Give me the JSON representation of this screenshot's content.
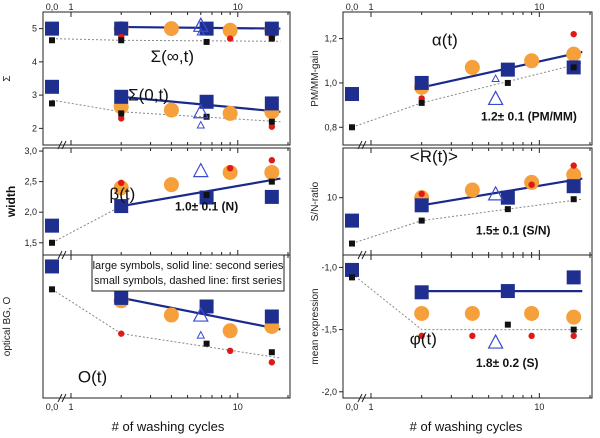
{
  "chart_data": {
    "type": "scatter",
    "x_axis_label": "# of washing cycles",
    "x_log_scale": true,
    "x_tick_labels": [
      "0,0",
      "1",
      "10"
    ],
    "legend_lines": [
      "large symbols, solid line: second series",
      "small symbols, dashed line: first series"
    ],
    "panels": [
      {
        "id": "sigma",
        "ylabel": "Σ",
        "ylim": [
          1.5,
          5.5
        ],
        "yticks": [
          {
            "v": 2,
            "t": "2"
          },
          {
            "v": 3,
            "t": "3"
          },
          {
            "v": 4,
            "t": "4"
          },
          {
            "v": 5,
            "t": "5"
          }
        ],
        "top_ticks": [
          {
            "v": 0,
            "t": "0,0"
          },
          {
            "v": 1,
            "t": "1"
          },
          {
            "v": 10,
            "t": "10"
          }
        ],
        "labels": [
          {
            "text": "Σ(∞,t)",
            "x": 3.0,
            "y": 4.3
          },
          {
            "text": "Σ(0,t)",
            "x": 2.2,
            "y": 2.9
          }
        ],
        "groups": [
          {
            "name": "Σ(∞,t)",
            "squares": [
              [
                0,
                5.0
              ],
              [
                2,
                5.0
              ],
              [
                6.5,
                5.0
              ],
              [
                16,
                5.0
              ]
            ],
            "circles": [
              [
                2,
                5.0
              ],
              [
                4,
                5.0
              ],
              [
                9,
                4.95
              ],
              [
                16,
                4.95
              ]
            ],
            "triangles_large": [
              [
                6,
                5.1
              ]
            ],
            "small_squares": [
              [
                0,
                4.65
              ],
              [
                2,
                4.65
              ],
              [
                6.5,
                4.6
              ],
              [
                16,
                4.7
              ]
            ],
            "small_circles": [
              [
                2,
                4.75
              ],
              [
                9,
                4.7
              ],
              [
                16,
                4.7
              ]
            ],
            "triangles_small": [
              [
                6,
                4.9
              ]
            ],
            "solid_line": [
              [
                2,
                5.05
              ],
              [
                18,
                5.0
              ]
            ],
            "dashed_line": [
              [
                0,
                4.7
              ],
              [
                2,
                4.65
              ],
              [
                18,
                4.62
              ]
            ]
          },
          {
            "name": "Σ(0,t)",
            "squares": [
              [
                0,
                3.25
              ],
              [
                2,
                2.95
              ],
              [
                6.5,
                2.8
              ],
              [
                16,
                2.75
              ]
            ],
            "circles": [
              [
                2,
                2.65
              ],
              [
                4,
                2.55
              ],
              [
                9,
                2.45
              ],
              [
                16,
                2.5
              ]
            ],
            "triangles_large": [
              [
                6,
                2.5
              ]
            ],
            "small_squares": [
              [
                0,
                2.75
              ],
              [
                2,
                2.45
              ],
              [
                6.5,
                2.35
              ],
              [
                16,
                2.2
              ]
            ],
            "small_circles": [
              [
                2,
                2.3
              ],
              [
                16,
                2.05
              ]
            ],
            "triangles_small": [
              [
                6,
                2.1
              ]
            ],
            "solid_line": [
              [
                2,
                2.95
              ],
              [
                18,
                2.5
              ]
            ],
            "dashed_line": [
              [
                0,
                2.85
              ],
              [
                2,
                2.5
              ],
              [
                18,
                2.2
              ]
            ]
          }
        ]
      },
      {
        "id": "alpha",
        "ylabel": "PM/MM-gain",
        "ylim": [
          0.72,
          1.32
        ],
        "yticks": [
          {
            "v": 0.8,
            "t": "0,8"
          },
          {
            "v": 1.0,
            "t": "1,0"
          },
          {
            "v": 1.2,
            "t": "1,2"
          }
        ],
        "top_ticks": [
          {
            "v": 0,
            "t": "0,0"
          },
          {
            "v": 1,
            "t": "1"
          },
          {
            "v": 10,
            "t": "10"
          }
        ],
        "labels": [
          {
            "text": "α(t)",
            "x": 2.3,
            "y": 1.26
          }
        ],
        "annotation": {
          "text": "1.2± 0.1 (PM/MM)",
          "x": 4.5,
          "y": 0.83
        },
        "groups": [
          {
            "name": "α(t)",
            "squares": [
              [
                0,
                0.95
              ],
              [
                2,
                1.0
              ],
              [
                6.5,
                1.06
              ],
              [
                16,
                1.07
              ]
            ],
            "circles": [
              [
                2,
                0.98
              ],
              [
                4,
                1.07
              ],
              [
                9,
                1.1
              ],
              [
                16,
                1.13
              ]
            ],
            "triangles_large": [
              [
                5.5,
                0.93
              ]
            ],
            "small_squares": [
              [
                0,
                0.8
              ],
              [
                2,
                0.91
              ],
              [
                6.5,
                1.0
              ],
              [
                16,
                1.07
              ]
            ],
            "small_circles": [
              [
                2,
                0.93
              ],
              [
                16,
                1.22
              ]
            ],
            "triangles_small": [
              [
                5.5,
                1.02
              ]
            ],
            "solid_line": [
              [
                2,
                0.98
              ],
              [
                18,
                1.14
              ]
            ],
            "dashed_line": [
              [
                0,
                0.8
              ],
              [
                2,
                0.91
              ],
              [
                18,
                1.09
              ]
            ]
          }
        ]
      },
      {
        "id": "beta",
        "ylabel": "width",
        "ylim": [
          1.3,
          3.05
        ],
        "yticks": [
          {
            "v": 1.5,
            "t": "1,5"
          },
          {
            "v": 2.0,
            "t": "2,0"
          },
          {
            "v": 2.5,
            "t": "2,5"
          },
          {
            "v": 3.0,
            "t": "3,0"
          }
        ],
        "labels": [
          {
            "text": "β(t)",
            "x": 1.7,
            "y": 2.44
          }
        ],
        "annotation": {
          "text": "1.0± 0.1 (N)",
          "x": 4.2,
          "y": 2.03
        },
        "groups": [
          {
            "name": "β(t)",
            "squares": [
              [
                0,
                1.78
              ],
              [
                2,
                2.1
              ],
              [
                6.5,
                2.24
              ],
              [
                16,
                2.25
              ]
            ],
            "circles": [
              [
                2,
                2.4
              ],
              [
                4,
                2.45
              ],
              [
                9,
                2.65
              ],
              [
                16,
                2.65
              ]
            ],
            "triangles_large": [
              [
                6,
                2.68
              ]
            ],
            "small_squares": [
              [
                0,
                1.5
              ],
              [
                6.5,
                2.28
              ],
              [
                16,
                2.5
              ]
            ],
            "small_circles": [
              [
                2,
                2.48
              ],
              [
                9,
                2.72
              ],
              [
                16,
                2.85
              ]
            ],
            "triangles_small": [],
            "solid_line": [
              [
                2,
                2.1
              ],
              [
                18,
                2.55
              ]
            ],
            "dashed_line": [
              [
                0,
                1.5
              ],
              [
                2,
                2.1
              ],
              [
                18,
                2.55
              ]
            ]
          }
        ]
      },
      {
        "id": "rt",
        "ylabel": "S/N-ratio",
        "ylim": [
          2.5,
          16.5
        ],
        "yticks": [
          {
            "v": 10,
            "t": "10"
          }
        ],
        "labels": [
          {
            "text": "<R(t)>",
            "x": 1.7,
            "y": 14.7
          }
        ],
        "annotation": {
          "text": "1.5± 0.1 (S/N)",
          "x": 4.2,
          "y": 5.2
        },
        "groups": [
          {
            "name": "<R(t)>",
            "squares": [
              [
                0,
                7.0
              ],
              [
                2,
                9.0
              ],
              [
                6.5,
                10.0
              ],
              [
                16,
                11.5
              ]
            ],
            "circles": [
              [
                2,
                10.0
              ],
              [
                4,
                11.0
              ],
              [
                9,
                12.0
              ],
              [
                16,
                13.0
              ]
            ],
            "triangles_large": [
              [
                5.5,
                10.5
              ]
            ],
            "small_squares": [
              [
                0,
                4.0
              ],
              [
                2,
                7.0
              ],
              [
                6.5,
                8.5
              ],
              [
                16,
                9.8
              ]
            ],
            "small_circles": [
              [
                2,
                10.5
              ],
              [
                9,
                11.7
              ],
              [
                16,
                14.2
              ]
            ],
            "triangles_small": [],
            "solid_line": [
              [
                2,
                9.0
              ],
              [
                18,
                12.5
              ]
            ],
            "dashed_line": [
              [
                0,
                4.0
              ],
              [
                2,
                7.0
              ],
              [
                18,
                9.8
              ]
            ]
          }
        ]
      },
      {
        "id": "optical",
        "ylabel": "optical BG, O",
        "ylim": [
          0.0,
          1.0
        ],
        "yticks": [],
        "labels": [
          {
            "text": "O(t)",
            "x": 1.1,
            "y": 0.18
          }
        ],
        "groups": [
          {
            "name": "O(t)",
            "squares": [
              [
                0,
                0.92
              ],
              [
                2,
                0.7
              ],
              [
                6.5,
                0.64
              ],
              [
                16,
                0.57
              ]
            ],
            "circles": [
              [
                2,
                0.68
              ],
              [
                4,
                0.58
              ],
              [
                9,
                0.47
              ],
              [
                16,
                0.5
              ]
            ],
            "triangles_large": [
              [
                6,
                0.58
              ]
            ],
            "small_squares": [
              [
                0,
                0.76
              ],
              [
                6.5,
                0.38
              ],
              [
                16,
                0.32
              ]
            ],
            "small_circles": [
              [
                2,
                0.45
              ],
              [
                9,
                0.33
              ],
              [
                16,
                0.25
              ]
            ],
            "triangles_small": [
              [
                6,
                0.44
              ]
            ],
            "solid_line": [
              [
                2,
                0.7
              ],
              [
                18,
                0.48
              ]
            ],
            "dashed_line": [
              [
                0,
                0.76
              ],
              [
                2,
                0.45
              ],
              [
                18,
                0.28
              ]
            ]
          }
        ]
      },
      {
        "id": "phi",
        "ylabel": "mean expression",
        "ylim": [
          -2.05,
          -0.9
        ],
        "yticks": [
          {
            "v": -1.0,
            "t": "-1,0"
          },
          {
            "v": -1.5,
            "t": "-1,5"
          },
          {
            "v": -2.0,
            "t": "-2,0"
          }
        ],
        "labels": [
          {
            "text": "φ(t)",
            "x": 1.7,
            "y": -1.62
          }
        ],
        "annotation": {
          "text": "1.8± 0.2 (S)",
          "x": 4.2,
          "y": -1.8
        },
        "groups": [
          {
            "name": "φ(t)",
            "squares": [
              [
                0,
                -1.02
              ],
              [
                2,
                -1.2
              ],
              [
                6.5,
                -1.19
              ],
              [
                16,
                -1.08
              ]
            ],
            "circles": [
              [
                2,
                -1.37
              ],
              [
                4,
                -1.37
              ],
              [
                9,
                -1.37
              ],
              [
                16,
                -1.4
              ]
            ],
            "triangles_large": [
              [
                5.5,
                -1.6
              ]
            ],
            "small_squares": [
              [
                0,
                -1.08
              ],
              [
                6.5,
                -1.46
              ],
              [
                16,
                -1.5
              ]
            ],
            "small_circles": [
              [
                2,
                -1.55
              ],
              [
                4,
                -1.55
              ],
              [
                9,
                -1.55
              ],
              [
                16,
                -1.55
              ]
            ],
            "triangles_small": [],
            "solid_line": [
              [
                2,
                -1.19
              ],
              [
                18,
                -1.19
              ]
            ],
            "dashed_line": [
              [
                0,
                -1.05
              ],
              [
                2,
                -1.5
              ],
              [
                18,
                -1.5
              ]
            ]
          }
        ]
      }
    ]
  },
  "colors": {
    "square": "#1f2f8f",
    "circle": "#f5a03a",
    "small_square": "#111111",
    "small_circle": "#e01818",
    "triangle": "#3a4bd0",
    "solid_line": "#1a2a8c",
    "dashed_line": "#888888"
  }
}
